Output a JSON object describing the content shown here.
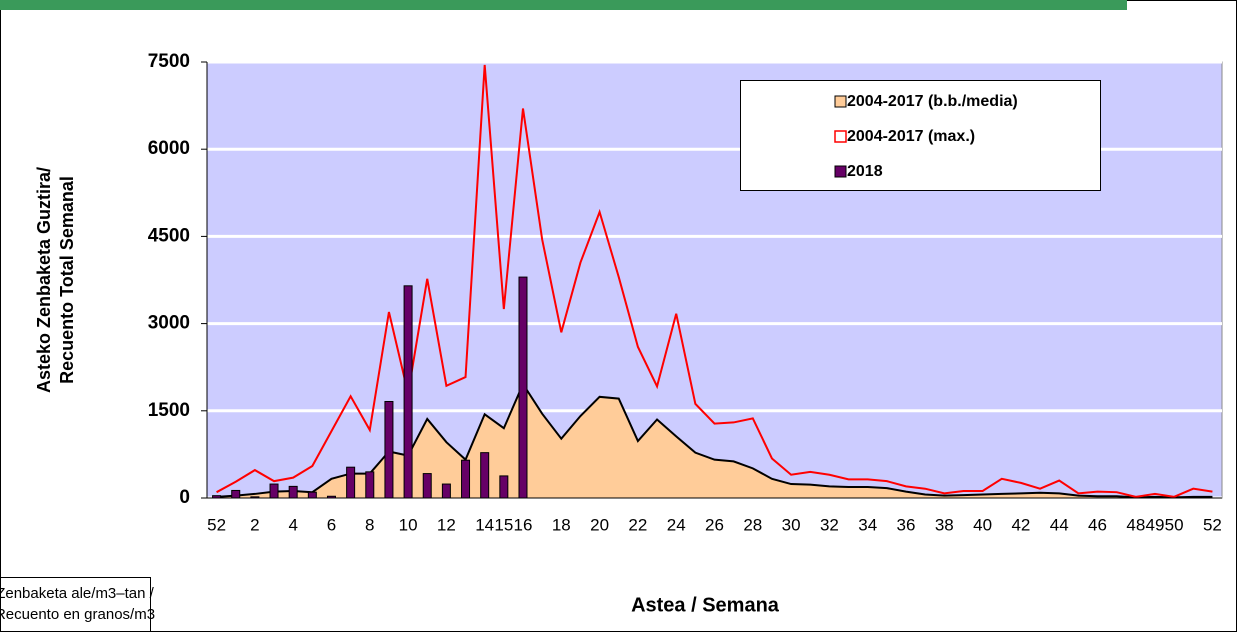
{
  "chart_data": {
    "type": "line-area-bar",
    "x_label": "Astea / Semana",
    "y_label": [
      "Asteko Zenbaketa Guztira/",
      "Recuento Total Semanal"
    ],
    "note": [
      "Zenbaketa ale/m3–tan /",
      "Recuento en granos/m3"
    ],
    "categories": [
      52,
      null,
      2,
      null,
      4,
      null,
      6,
      null,
      8,
      null,
      10,
      null,
      12,
      null,
      14,
      15,
      16,
      null,
      18,
      null,
      20,
      null,
      22,
      null,
      24,
      null,
      26,
      null,
      28,
      null,
      30,
      null,
      32,
      null,
      34,
      null,
      36,
      null,
      38,
      null,
      40,
      null,
      42,
      null,
      44,
      null,
      46,
      null,
      48,
      49,
      50,
      null,
      52
    ],
    "ylim": [
      0,
      7500
    ],
    "yticks": [
      0,
      1500,
      3000,
      4500,
      6000,
      7500
    ],
    "grid": true,
    "legend": "upper right",
    "series": [
      {
        "name": "2004-2017 (b.b./media)",
        "kind": "area",
        "color": "#ffcc99",
        "values": [
          20,
          40,
          70,
          110,
          120,
          100,
          330,
          420,
          420,
          800,
          730,
          1360,
          960,
          660,
          1440,
          1200,
          1960,
          1450,
          1020,
          1410,
          1740,
          1710,
          980,
          1350,
          1060,
          780,
          660,
          630,
          510,
          330,
          240,
          230,
          200,
          190,
          190,
          170,
          110,
          60,
          40,
          50,
          60,
          70,
          80,
          90,
          80,
          40,
          30,
          30,
          10,
          20,
          10,
          20,
          20
        ]
      },
      {
        "name": "2004-2017 (max.)",
        "kind": "line",
        "color": "#ff0000",
        "values": [
          100,
          280,
          480,
          290,
          350,
          550,
          1150,
          1750,
          1170,
          3200,
          1800,
          3770,
          1930,
          2080,
          7450,
          3250,
          6700,
          4450,
          2850,
          4050,
          4920,
          3800,
          2600,
          1920,
          3170,
          1620,
          1280,
          1300,
          1370,
          680,
          400,
          450,
          400,
          320,
          320,
          290,
          200,
          160,
          80,
          120,
          120,
          330,
          260,
          160,
          300,
          80,
          110,
          100,
          20,
          70,
          20,
          160,
          110
        ]
      },
      {
        "name": "2018",
        "kind": "bar",
        "color": "#660066",
        "values": [
          40,
          130,
          20,
          240,
          200,
          100,
          30,
          530,
          450,
          1660,
          3650,
          420,
          240,
          650,
          780,
          380,
          3800,
          null,
          null,
          null,
          null,
          null,
          null,
          null,
          null,
          null,
          null,
          null,
          null,
          null,
          null,
          null,
          null,
          null,
          null,
          null,
          null,
          null,
          null,
          null,
          null,
          null,
          null,
          null,
          null,
          null,
          null,
          null,
          null,
          null,
          null,
          null,
          null
        ]
      }
    ]
  }
}
